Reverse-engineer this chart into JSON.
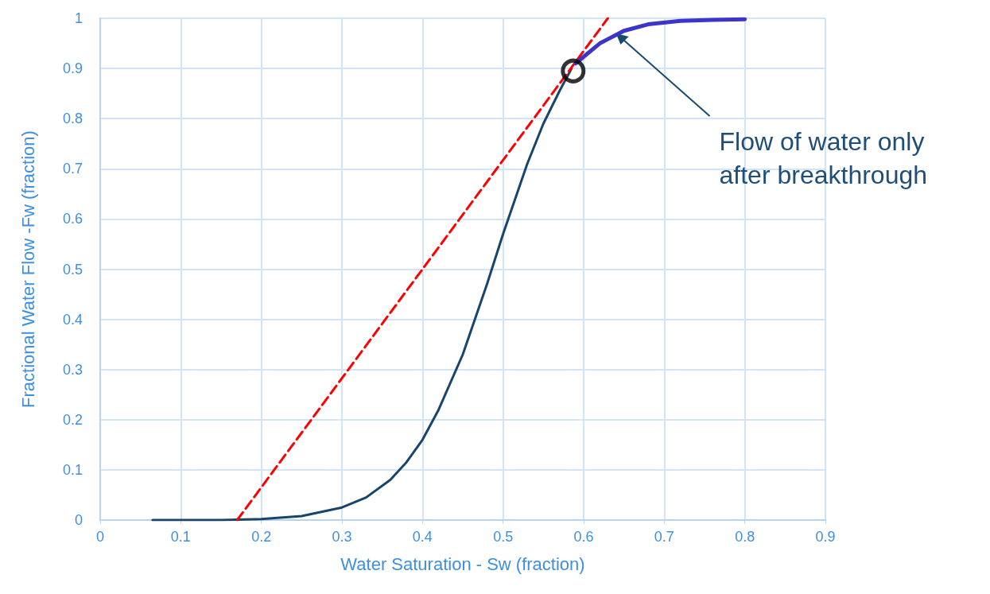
{
  "chart_data": {
    "type": "line",
    "xlabel": "Water Saturation - Sw (fraction)",
    "ylabel": "Fractional Water Flow -Fw (fraction)",
    "xlim": [
      0,
      0.9
    ],
    "xticks": [
      0,
      0.1,
      0.2,
      0.3,
      0.4,
      0.5,
      0.6,
      0.7,
      0.8,
      0.9
    ],
    "ylim": [
      0,
      1
    ],
    "yticks": [
      0,
      0.1,
      0.2,
      0.3,
      0.4,
      0.5,
      0.6,
      0.7,
      0.8,
      0.9,
      1
    ],
    "grid": true,
    "series": [
      {
        "color": "#17456b",
        "line_style": "solid",
        "marker": "none",
        "x": [
          0.065,
          0.1,
          0.15,
          0.2,
          0.25,
          0.3,
          0.33,
          0.36,
          0.38,
          0.4,
          0.42,
          0.45,
          0.48,
          0.5,
          0.53,
          0.55,
          0.57,
          0.585
        ],
        "values": [
          0,
          0,
          0,
          0.002,
          0.008,
          0.025,
          0.045,
          0.08,
          0.115,
          0.16,
          0.22,
          0.33,
          0.47,
          0.57,
          0.71,
          0.79,
          0.855,
          0.9
        ]
      },
      {
        "color": "#3b35c9",
        "line_style": "solid",
        "marker": "none",
        "x": [
          0.59,
          0.62,
          0.65,
          0.68,
          0.72,
          0.76,
          0.8
        ],
        "values": [
          0.91,
          0.95,
          0.975,
          0.988,
          0.995,
          0.997,
          0.998
        ]
      },
      {
        "color": "#ff0000",
        "line_style": "dashed",
        "marker": "none",
        "x": [
          0.17,
          0.63
        ],
        "values": [
          0,
          1
        ]
      },
      {
        "type": "scatter",
        "color": "#000000",
        "marker": "circle",
        "x": [
          0.587
        ],
        "values": [
          0.895
        ]
      }
    ],
    "annotations": [
      {
        "text": "Flow of water only after breakthrough",
        "x": 0.64,
        "y": 0.97
      }
    ]
  }
}
